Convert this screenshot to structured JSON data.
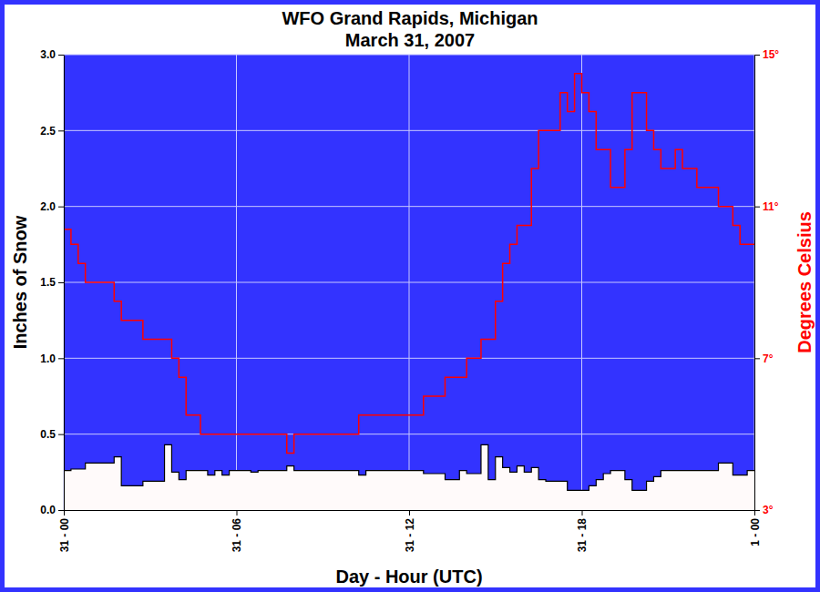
{
  "chart_data": {
    "type": "line",
    "title": "WFO Grand Rapids, Michigan",
    "subtitle": "March 31, 2007",
    "xlabel": "Day - Hour (UTC)",
    "ylabel": "Inches of Snow",
    "y2label": "Degrees Celsius",
    "grid": true,
    "x": [
      0,
      0.25,
      0.5,
      0.75,
      1,
      1.25,
      1.5,
      1.75,
      2,
      2.25,
      2.5,
      2.75,
      3,
      3.25,
      3.5,
      3.75,
      4,
      4.25,
      4.5,
      4.75,
      5,
      5.25,
      5.5,
      5.75,
      6,
      6.25,
      6.5,
      6.75,
      7,
      7.25,
      7.5,
      7.75,
      8,
      8.25,
      8.5,
      8.75,
      9,
      9.25,
      9.5,
      9.75,
      10,
      10.25,
      10.5,
      10.75,
      11,
      11.25,
      11.5,
      11.75,
      12,
      12.25,
      12.5,
      12.75,
      13,
      13.25,
      13.5,
      13.75,
      14,
      14.25,
      14.5,
      14.75,
      15,
      15.25,
      15.5,
      15.75,
      16,
      16.25,
      16.5,
      16.75,
      17,
      17.25,
      17.5,
      17.75,
      18,
      18.25,
      18.5,
      18.75,
      19,
      19.25,
      19.5,
      19.75,
      20,
      20.25,
      20.5,
      20.75,
      21,
      21.25,
      21.5,
      21.75,
      22,
      22.25,
      22.5,
      22.75,
      23,
      23.25,
      23.5,
      23.75,
      24
    ],
    "xlim": [
      0,
      24
    ],
    "xticks": [
      {
        "value": 0,
        "label": "31 - 00"
      },
      {
        "value": 6,
        "label": "31 - 06"
      },
      {
        "value": 12,
        "label": "31 - 12"
      },
      {
        "value": 18,
        "label": "31 - 18"
      },
      {
        "value": 24,
        "label": "1 - 00"
      }
    ],
    "ylim": [
      0,
      3
    ],
    "yticks": [
      {
        "value": 0,
        "label": "0.0"
      },
      0.5,
      {
        "value": 1,
        "label": "1.0"
      },
      1.5,
      {
        "value": 2,
        "label": "2.0"
      },
      2.5,
      {
        "value": 3,
        "label": "3.0"
      }
    ],
    "y2lim": [
      3,
      15
    ],
    "y2ticks": [
      {
        "value": 3,
        "label": "3°"
      },
      {
        "value": 7,
        "label": "7°"
      },
      {
        "value": 11,
        "label": "11°"
      },
      {
        "value": 15,
        "label": "15°"
      }
    ],
    "series": [
      {
        "type": "area",
        "color": "#fffafa",
        "values": [
          0.26,
          0.27,
          0.27,
          0.31,
          0.31,
          0.31,
          0.31,
          0.35,
          0.16,
          0.16,
          0.16,
          0.19,
          0.19,
          0.19,
          0.43,
          0.25,
          0.2,
          0.26,
          0.26,
          0.26,
          0.23,
          0.26,
          0.23,
          0.26,
          0.26,
          0.26,
          0.25,
          0.26,
          0.26,
          0.26,
          0.26,
          0.29,
          0.26,
          0.26,
          0.26,
          0.26,
          0.26,
          0.26,
          0.26,
          0.26,
          0.26,
          0.23,
          0.26,
          0.26,
          0.26,
          0.26,
          0.26,
          0.26,
          0.26,
          0.26,
          0.24,
          0.24,
          0.24,
          0.2,
          0.2,
          0.26,
          0.24,
          0.24,
          0.43,
          0.2,
          0.35,
          0.28,
          0.25,
          0.29,
          0.25,
          0.28,
          0.2,
          0.19,
          0.19,
          0.19,
          0.13,
          0.13,
          0.13,
          0.16,
          0.2,
          0.24,
          0.26,
          0.26,
          0.2,
          0.13,
          0.13,
          0.19,
          0.22,
          0.26,
          0.26,
          0.26,
          0.26,
          0.26,
          0.26,
          0.26,
          0.26,
          0.31,
          0.31,
          0.23,
          0.23,
          0.26,
          0.26
        ]
      },
      {
        "type": "line",
        "axis": "y2",
        "color": "#ff0000",
        "values": [
          10.4,
          10.0,
          9.5,
          9.0,
          9.0,
          9.0,
          9.0,
          8.5,
          8.0,
          8.0,
          8.0,
          7.5,
          7.5,
          7.5,
          7.5,
          7.0,
          6.5,
          5.5,
          5.5,
          5.0,
          5.0,
          5.0,
          5.0,
          5.0,
          5.0,
          5.0,
          5.0,
          5.0,
          5.0,
          5.0,
          5.0,
          4.5,
          5.0,
          5.0,
          5.0,
          5.0,
          5.0,
          5.0,
          5.0,
          5.0,
          5.0,
          5.5,
          5.5,
          5.5,
          5.5,
          5.5,
          5.5,
          5.5,
          5.5,
          5.5,
          6.0,
          6.0,
          6.0,
          6.5,
          6.5,
          6.5,
          7.0,
          7.0,
          7.5,
          7.5,
          8.5,
          9.5,
          10.0,
          10.5,
          10.5,
          12.0,
          13.0,
          13.0,
          13.0,
          14.0,
          13.5,
          14.5,
          14.0,
          13.5,
          12.5,
          12.5,
          11.5,
          11.5,
          12.5,
          14.0,
          14.0,
          13.0,
          12.5,
          12.0,
          12.0,
          12.5,
          12.0,
          12.0,
          11.5,
          11.5,
          11.5,
          11.0,
          11.0,
          10.5,
          10.0,
          10.0,
          10.0
        ]
      }
    ]
  }
}
